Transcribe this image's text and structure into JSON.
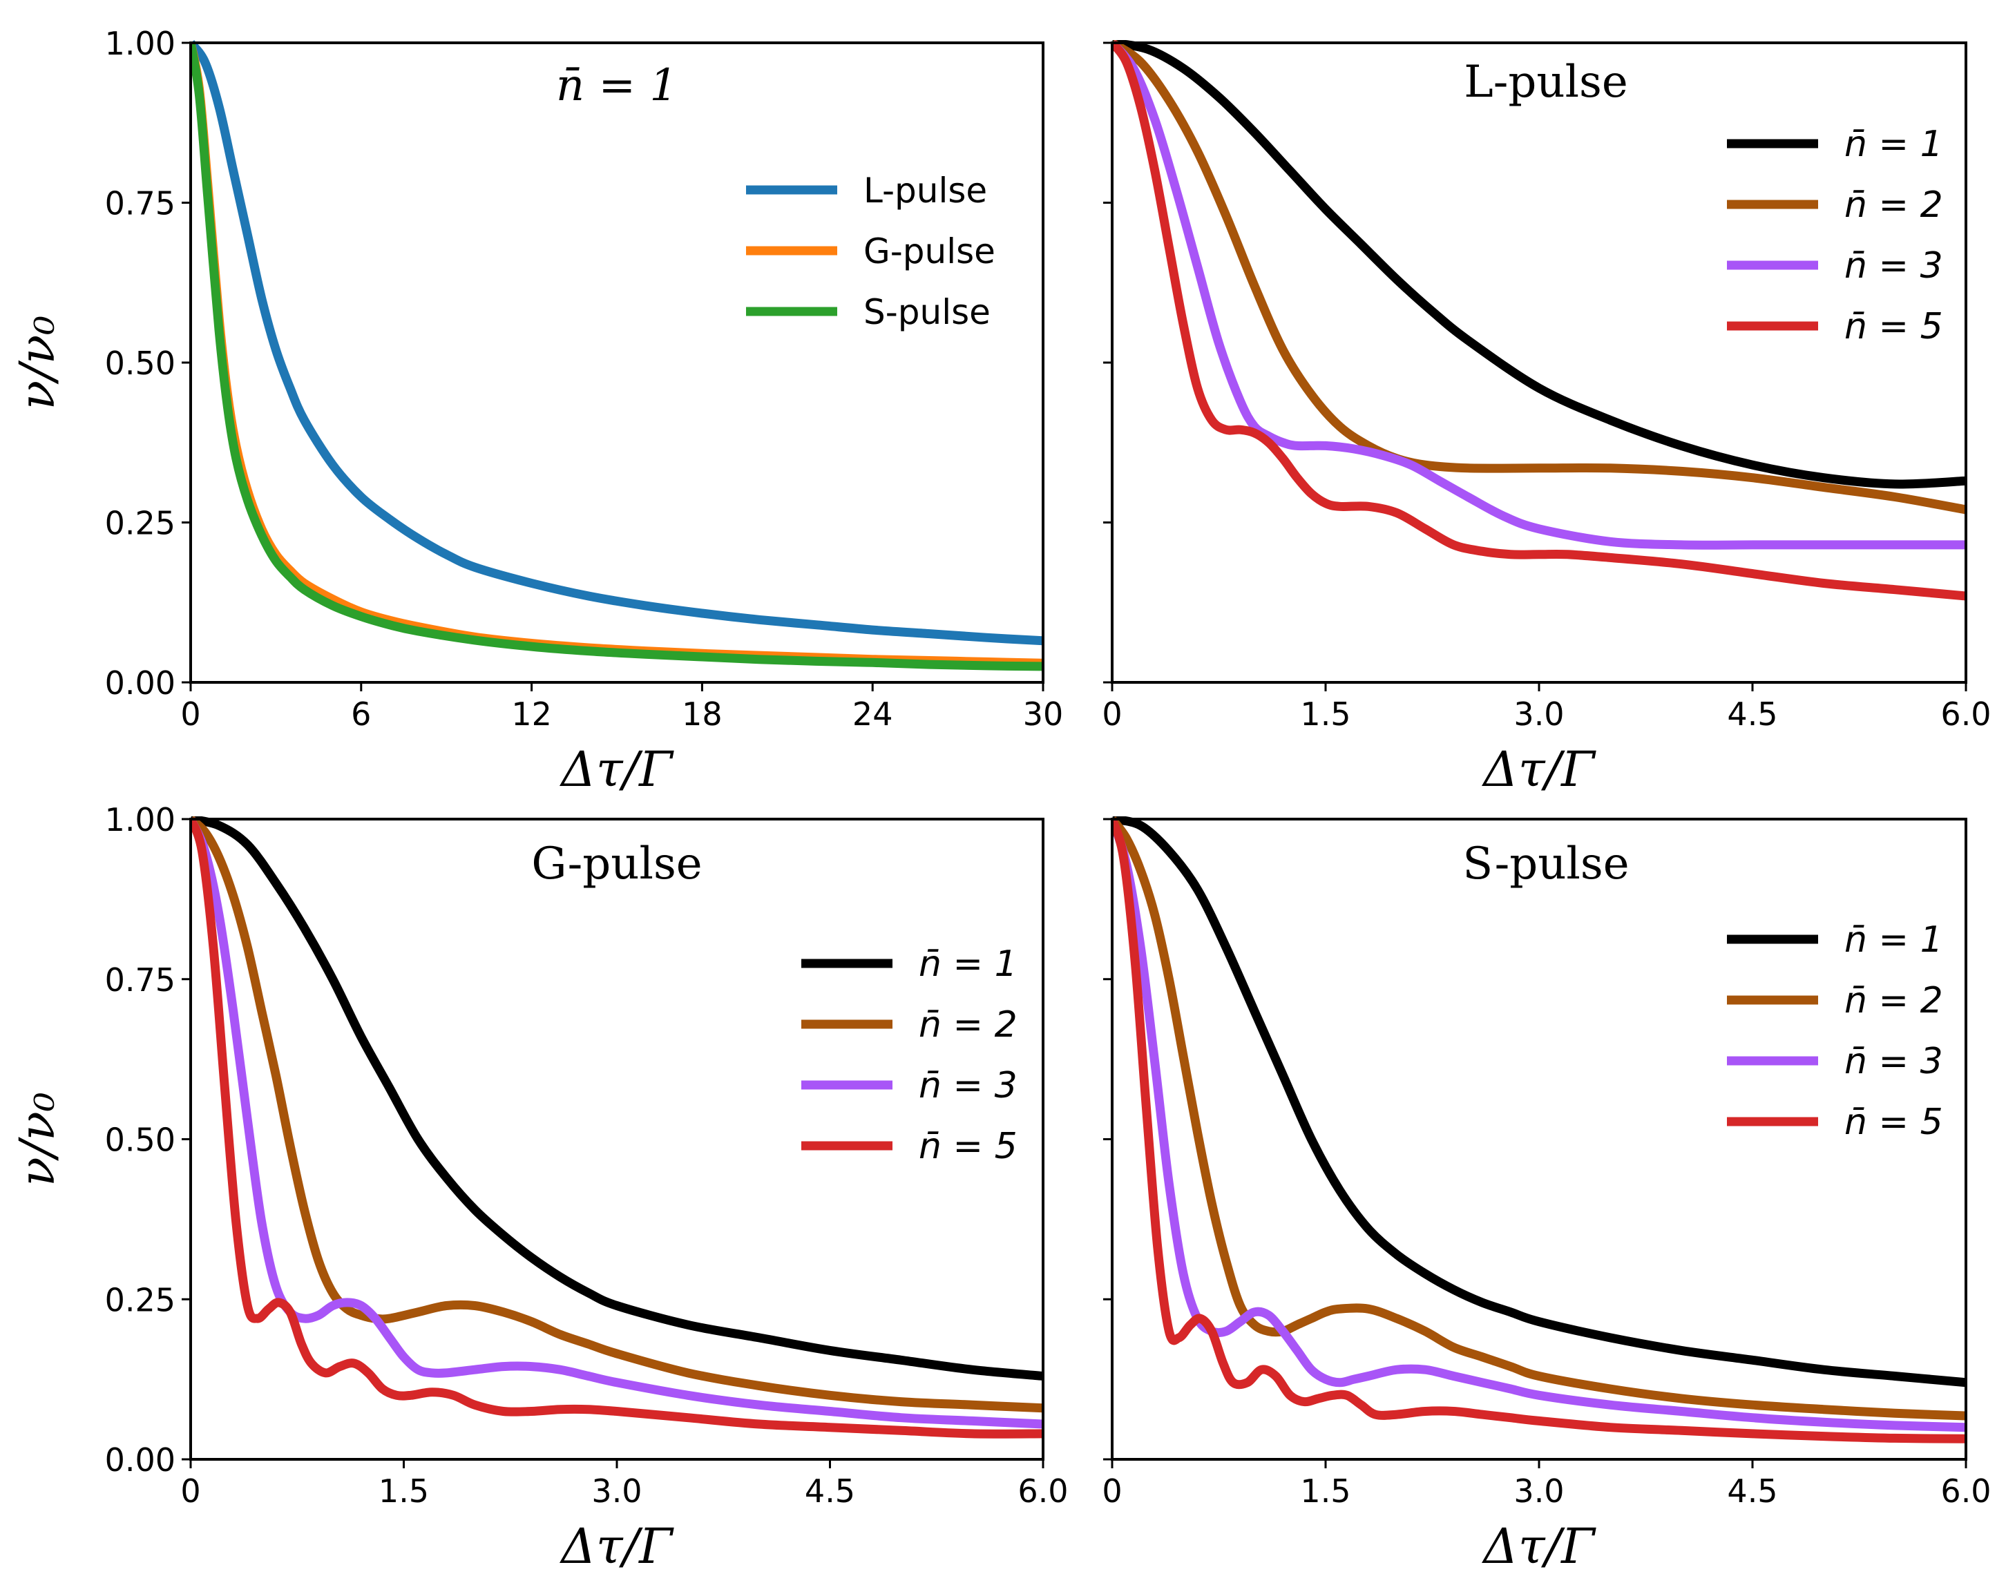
{
  "figure": {
    "ylabel": "ν/ν₀",
    "xlabel": "Δτ/Γ"
  },
  "colors": {
    "L-pulse": "#1f77b4",
    "G-pulse": "#ff7f0e",
    "S-pulse": "#2ca02c",
    "n1": "#000000",
    "n2": "#a6540a",
    "n3": "#a855f7",
    "n5": "#d62728"
  },
  "chart_data": [
    {
      "id": "top-left",
      "type": "line",
      "title": "n̄ = 1",
      "xlabel": "Δτ/Γ",
      "ylabel": "ν/ν₀",
      "xlim": [
        0,
        30
      ],
      "ylim": [
        0,
        1
      ],
      "xticks": [
        "0",
        "6",
        "12",
        "18",
        "24",
        "30"
      ],
      "yticks": [
        "0.00",
        "0.25",
        "0.50",
        "0.75",
        "1.00"
      ],
      "legend_position": "upper-right",
      "series": [
        {
          "name": "L-pulse",
          "color": "#1f77b4",
          "x": [
            0,
            0.5,
            1,
            1.5,
            2,
            2.5,
            3,
            3.5,
            4,
            5,
            6,
            7,
            8,
            9,
            10,
            12,
            14,
            16,
            18,
            20,
            22,
            24,
            26,
            28,
            30
          ],
          "y": [
            1.0,
            0.97,
            0.9,
            0.8,
            0.7,
            0.6,
            0.52,
            0.46,
            0.41,
            0.34,
            0.29,
            0.255,
            0.225,
            0.2,
            0.18,
            0.155,
            0.135,
            0.12,
            0.108,
            0.098,
            0.09,
            0.082,
            0.076,
            0.07,
            0.065
          ]
        },
        {
          "name": "G-pulse",
          "color": "#ff7f0e",
          "x": [
            0,
            0.3,
            0.6,
            1,
            1.3,
            1.6,
            2,
            2.5,
            3,
            3.5,
            4,
            5,
            6,
            7,
            8,
            10,
            12,
            14,
            16,
            18,
            20,
            22,
            24,
            26,
            28,
            30
          ],
          "y": [
            1.0,
            0.93,
            0.78,
            0.57,
            0.45,
            0.37,
            0.3,
            0.24,
            0.2,
            0.175,
            0.155,
            0.13,
            0.11,
            0.097,
            0.087,
            0.071,
            0.061,
            0.054,
            0.049,
            0.045,
            0.042,
            0.039,
            0.036,
            0.034,
            0.032,
            0.03
          ]
        },
        {
          "name": "S-pulse",
          "color": "#2ca02c",
          "x": [
            0,
            0.3,
            0.6,
            1,
            1.3,
            1.6,
            2,
            2.5,
            3,
            3.5,
            4,
            5,
            6,
            7,
            8,
            10,
            12,
            14,
            16,
            18,
            20,
            22,
            24,
            26,
            28,
            30
          ],
          "y": [
            1.0,
            0.92,
            0.76,
            0.55,
            0.43,
            0.35,
            0.285,
            0.23,
            0.19,
            0.165,
            0.145,
            0.12,
            0.103,
            0.09,
            0.08,
            0.066,
            0.056,
            0.049,
            0.044,
            0.04,
            0.036,
            0.033,
            0.031,
            0.028,
            0.026,
            0.025
          ]
        }
      ]
    },
    {
      "id": "top-right",
      "type": "line",
      "title": "L-pulse",
      "xlabel": "Δτ/Γ",
      "ylabel": "",
      "xlim": [
        0,
        6
      ],
      "ylim": [
        0,
        1
      ],
      "xticks": [
        "0",
        "1.5",
        "3.0",
        "4.5",
        "6.0"
      ],
      "yticks": [],
      "legend_position": "upper-right",
      "series": [
        {
          "name": "n̄ = 1",
          "color": "#000000",
          "x": [
            0,
            0.25,
            0.5,
            0.75,
            1,
            1.25,
            1.5,
            1.75,
            2,
            2.25,
            2.5,
            3,
            3.5,
            4,
            4.5,
            5,
            5.5,
            6
          ],
          "y": [
            1.0,
            0.99,
            0.96,
            0.915,
            0.86,
            0.8,
            0.74,
            0.685,
            0.63,
            0.58,
            0.535,
            0.46,
            0.41,
            0.37,
            0.34,
            0.32,
            0.31,
            0.315
          ]
        },
        {
          "name": "n̄ = 2",
          "color": "#a6540a",
          "x": [
            0,
            0.2,
            0.4,
            0.6,
            0.8,
            1,
            1.2,
            1.4,
            1.6,
            1.8,
            2,
            2.2,
            2.5,
            3,
            3.5,
            4,
            4.5,
            5,
            5.5,
            6
          ],
          "y": [
            1.0,
            0.97,
            0.91,
            0.83,
            0.73,
            0.62,
            0.52,
            0.45,
            0.4,
            0.37,
            0.35,
            0.34,
            0.335,
            0.335,
            0.335,
            0.33,
            0.32,
            0.305,
            0.29,
            0.27
          ]
        },
        {
          "name": "n̄ = 3",
          "color": "#a855f7",
          "x": [
            0,
            0.15,
            0.3,
            0.45,
            0.6,
            0.75,
            0.9,
            1,
            1.1,
            1.2,
            1.3,
            1.5,
            1.7,
            1.9,
            2.1,
            2.3,
            2.5,
            2.75,
            3,
            3.5,
            4,
            4.5,
            5,
            5.5,
            6
          ],
          "y": [
            1.0,
            0.96,
            0.88,
            0.77,
            0.65,
            0.53,
            0.44,
            0.4,
            0.385,
            0.375,
            0.37,
            0.37,
            0.365,
            0.355,
            0.34,
            0.315,
            0.29,
            0.26,
            0.24,
            0.22,
            0.215,
            0.215,
            0.215,
            0.215,
            0.215
          ]
        },
        {
          "name": "n̄ = 5",
          "color": "#d62728",
          "x": [
            0,
            0.1,
            0.2,
            0.3,
            0.4,
            0.5,
            0.6,
            0.7,
            0.8,
            0.9,
            1,
            1.1,
            1.2,
            1.3,
            1.4,
            1.5,
            1.6,
            1.8,
            2,
            2.2,
            2.4,
            2.6,
            2.8,
            3,
            3.2,
            3.5,
            4,
            4.5,
            5,
            5.5,
            6
          ],
          "y": [
            1.0,
            0.97,
            0.9,
            0.8,
            0.68,
            0.56,
            0.46,
            0.41,
            0.395,
            0.395,
            0.39,
            0.375,
            0.35,
            0.32,
            0.295,
            0.28,
            0.275,
            0.275,
            0.265,
            0.24,
            0.215,
            0.205,
            0.2,
            0.2,
            0.2,
            0.195,
            0.185,
            0.17,
            0.155,
            0.145,
            0.135
          ]
        }
      ]
    },
    {
      "id": "bottom-left",
      "type": "line",
      "title": "G-pulse",
      "xlabel": "Δτ/Γ",
      "ylabel": "ν/ν₀",
      "xlim": [
        0,
        6
      ],
      "ylim": [
        0,
        1
      ],
      "xticks": [
        "0",
        "1.5",
        "3.0",
        "4.5",
        "6.0"
      ],
      "yticks": [
        "0.00",
        "0.25",
        "0.50",
        "0.75",
        "1.00"
      ],
      "legend_position": "upper-right",
      "series": [
        {
          "name": "n̄ = 1",
          "color": "#000000",
          "x": [
            0,
            0.2,
            0.4,
            0.6,
            0.8,
            1,
            1.2,
            1.4,
            1.6,
            1.8,
            2,
            2.2,
            2.4,
            2.6,
            2.8,
            3,
            3.5,
            4,
            4.5,
            5,
            5.5,
            6
          ],
          "y": [
            1.0,
            0.99,
            0.96,
            0.9,
            0.83,
            0.75,
            0.66,
            0.58,
            0.5,
            0.44,
            0.39,
            0.35,
            0.315,
            0.285,
            0.26,
            0.24,
            0.21,
            0.19,
            0.17,
            0.155,
            0.14,
            0.13
          ]
        },
        {
          "name": "n̄ = 2",
          "color": "#a6540a",
          "x": [
            0,
            0.1,
            0.2,
            0.3,
            0.4,
            0.5,
            0.6,
            0.7,
            0.8,
            0.9,
            1,
            1.1,
            1.2,
            1.3,
            1.4,
            1.6,
            1.8,
            2,
            2.2,
            2.4,
            2.6,
            2.8,
            3,
            3.5,
            4,
            4.5,
            5,
            5.5,
            6
          ],
          "y": [
            1.0,
            0.98,
            0.94,
            0.88,
            0.8,
            0.7,
            0.6,
            0.49,
            0.39,
            0.31,
            0.26,
            0.235,
            0.225,
            0.22,
            0.22,
            0.23,
            0.24,
            0.24,
            0.23,
            0.215,
            0.195,
            0.18,
            0.165,
            0.135,
            0.115,
            0.1,
            0.09,
            0.085,
            0.08
          ]
        },
        {
          "name": "n̄ = 3",
          "color": "#a855f7",
          "x": [
            0,
            0.1,
            0.2,
            0.3,
            0.4,
            0.5,
            0.6,
            0.7,
            0.8,
            0.9,
            1,
            1.1,
            1.2,
            1.3,
            1.4,
            1.5,
            1.6,
            1.7,
            1.8,
            2,
            2.2,
            2.4,
            2.6,
            2.8,
            3,
            3.5,
            4,
            4.5,
            5,
            5.5,
            6
          ],
          "y": [
            1.0,
            0.95,
            0.85,
            0.7,
            0.53,
            0.37,
            0.27,
            0.23,
            0.22,
            0.225,
            0.24,
            0.245,
            0.24,
            0.22,
            0.19,
            0.16,
            0.14,
            0.135,
            0.135,
            0.14,
            0.145,
            0.145,
            0.14,
            0.13,
            0.12,
            0.1,
            0.085,
            0.075,
            0.065,
            0.06,
            0.055
          ]
        },
        {
          "name": "n̄ = 5",
          "color": "#d62728",
          "x": [
            0,
            0.08,
            0.16,
            0.24,
            0.32,
            0.4,
            0.47,
            0.55,
            0.62,
            0.7,
            0.78,
            0.85,
            0.95,
            1.05,
            1.15,
            1.25,
            1.35,
            1.45,
            1.55,
            1.7,
            1.85,
            2,
            2.2,
            2.4,
            2.6,
            2.8,
            3,
            3.5,
            4,
            4.5,
            5,
            5.5,
            6
          ],
          "y": [
            1.0,
            0.95,
            0.8,
            0.58,
            0.37,
            0.24,
            0.22,
            0.235,
            0.245,
            0.23,
            0.18,
            0.15,
            0.135,
            0.145,
            0.15,
            0.135,
            0.11,
            0.1,
            0.1,
            0.105,
            0.1,
            0.085,
            0.075,
            0.075,
            0.078,
            0.078,
            0.075,
            0.065,
            0.055,
            0.05,
            0.045,
            0.04,
            0.04
          ]
        }
      ]
    },
    {
      "id": "bottom-right",
      "type": "line",
      "title": "S-pulse",
      "xlabel": "Δτ/Γ",
      "ylabel": "",
      "xlim": [
        0,
        6
      ],
      "ylim": [
        0,
        1
      ],
      "xticks": [
        "0",
        "1.5",
        "3.0",
        "4.5",
        "6.0"
      ],
      "yticks": [],
      "legend_position": "upper-right",
      "series": [
        {
          "name": "n̄ = 1",
          "color": "#000000",
          "x": [
            0,
            0.2,
            0.4,
            0.6,
            0.8,
            1,
            1.2,
            1.4,
            1.6,
            1.8,
            2,
            2.2,
            2.4,
            2.6,
            2.8,
            3,
            3.5,
            4,
            4.5,
            5,
            5.5,
            6
          ],
          "y": [
            1.0,
            0.99,
            0.95,
            0.89,
            0.8,
            0.7,
            0.6,
            0.5,
            0.42,
            0.36,
            0.32,
            0.29,
            0.265,
            0.245,
            0.23,
            0.215,
            0.19,
            0.17,
            0.155,
            0.14,
            0.13,
            0.12
          ]
        },
        {
          "name": "n̄ = 2",
          "color": "#a6540a",
          "x": [
            0,
            0.1,
            0.2,
            0.3,
            0.4,
            0.5,
            0.6,
            0.7,
            0.8,
            0.9,
            1,
            1.1,
            1.2,
            1.3,
            1.4,
            1.5,
            1.6,
            1.8,
            2,
            2.2,
            2.4,
            2.6,
            2.8,
            3,
            3.5,
            4,
            4.5,
            5,
            5.5,
            6
          ],
          "y": [
            1.0,
            0.97,
            0.92,
            0.85,
            0.75,
            0.63,
            0.51,
            0.4,
            0.31,
            0.24,
            0.21,
            0.2,
            0.2,
            0.21,
            0.22,
            0.23,
            0.235,
            0.235,
            0.22,
            0.2,
            0.175,
            0.16,
            0.145,
            0.13,
            0.11,
            0.095,
            0.085,
            0.078,
            0.072,
            0.068
          ]
        },
        {
          "name": "n̄ = 3",
          "color": "#a855f7",
          "x": [
            0,
            0.1,
            0.2,
            0.3,
            0.4,
            0.5,
            0.6,
            0.7,
            0.8,
            0.9,
            1,
            1.1,
            1.2,
            1.3,
            1.4,
            1.5,
            1.6,
            1.7,
            1.8,
            2,
            2.2,
            2.4,
            2.6,
            2.8,
            3,
            3.5,
            4,
            4.5,
            5,
            5.5,
            6
          ],
          "y": [
            1.0,
            0.93,
            0.8,
            0.62,
            0.43,
            0.29,
            0.22,
            0.2,
            0.2,
            0.215,
            0.23,
            0.225,
            0.2,
            0.17,
            0.14,
            0.125,
            0.12,
            0.125,
            0.13,
            0.14,
            0.14,
            0.13,
            0.12,
            0.11,
            0.1,
            0.085,
            0.075,
            0.065,
            0.058,
            0.053,
            0.05
          ]
        },
        {
          "name": "n̄ = 5",
          "color": "#d62728",
          "x": [
            0,
            0.08,
            0.16,
            0.24,
            0.32,
            0.4,
            0.47,
            0.55,
            0.62,
            0.7,
            0.78,
            0.85,
            0.95,
            1.05,
            1.15,
            1.25,
            1.35,
            1.45,
            1.55,
            1.65,
            1.75,
            1.85,
            2,
            2.2,
            2.4,
            2.6,
            2.8,
            3,
            3.5,
            4,
            4.5,
            5,
            5.5,
            6
          ],
          "y": [
            1.0,
            0.94,
            0.78,
            0.55,
            0.33,
            0.2,
            0.19,
            0.21,
            0.22,
            0.2,
            0.15,
            0.12,
            0.12,
            0.14,
            0.13,
            0.1,
            0.09,
            0.095,
            0.1,
            0.1,
            0.085,
            0.07,
            0.07,
            0.075,
            0.075,
            0.07,
            0.065,
            0.06,
            0.05,
            0.045,
            0.04,
            0.036,
            0.033,
            0.032
          ]
        }
      ]
    }
  ]
}
